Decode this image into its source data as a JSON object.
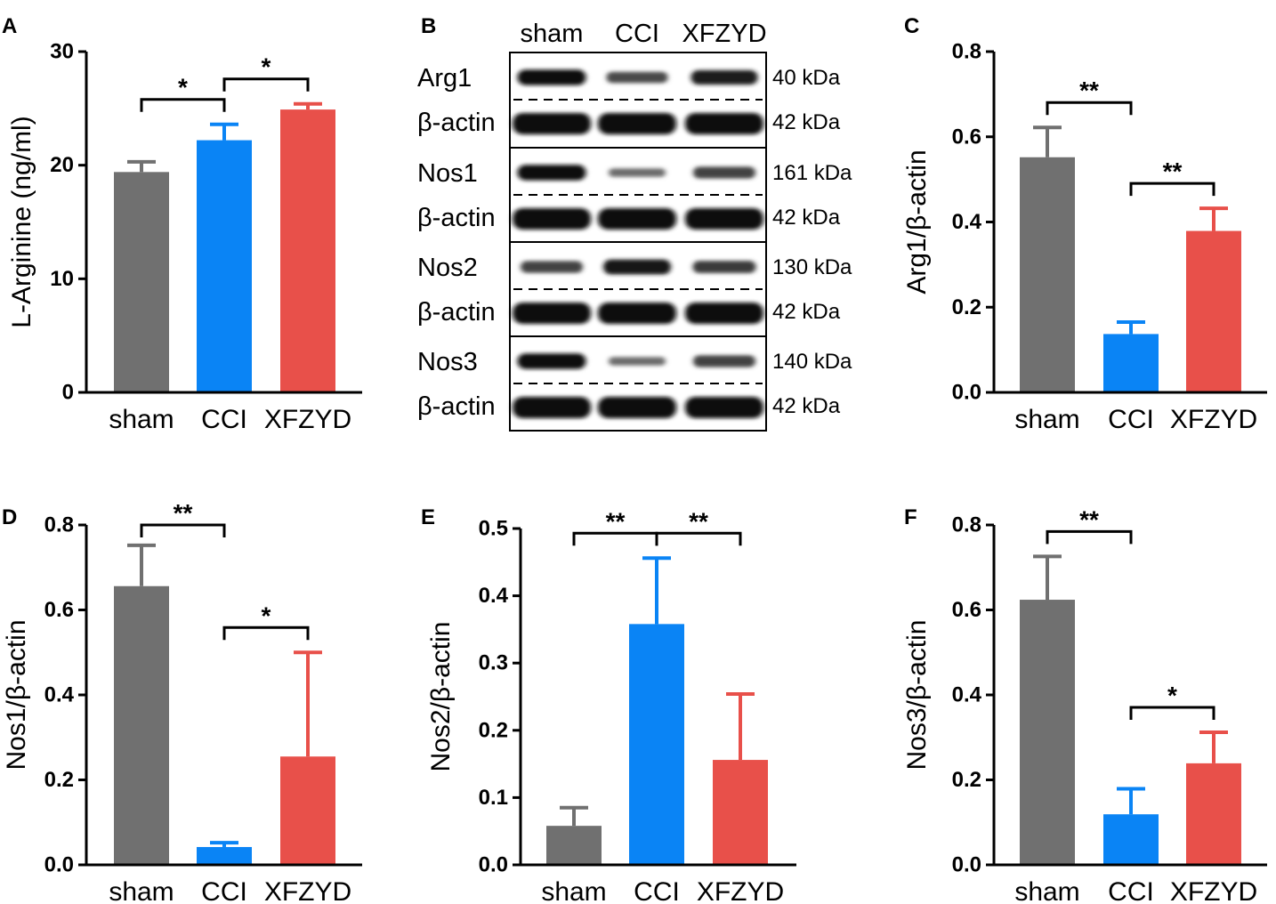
{
  "colors": {
    "sham": "#707070",
    "CCI": "#0a84f5",
    "XFZYD": "#e8504a",
    "axis": "#000000"
  },
  "chart_data": [
    {
      "panel": "A",
      "type": "bar",
      "ylabel": "L-Arginine (ng/ml)",
      "categories": [
        "sham",
        "CCI",
        "XFZYD"
      ],
      "values": [
        19.4,
        22.2,
        24.9
      ],
      "errors": [
        0.9,
        1.4,
        0.5
      ],
      "ylim": [
        0,
        30
      ],
      "yticks": [
        "0",
        "10",
        "20",
        "30"
      ],
      "comparisons": [
        {
          "from": 0,
          "to": 1,
          "label": "*"
        },
        {
          "from": 1,
          "to": 2,
          "label": "*"
        }
      ]
    },
    {
      "panel": "C",
      "type": "bar",
      "ylabel": "Arg1/β-actin",
      "categories": [
        "sham",
        "CCI",
        "XFZYD"
      ],
      "values": [
        0.552,
        0.137,
        0.379
      ],
      "errors": [
        0.07,
        0.028,
        0.053
      ],
      "ylim": [
        0,
        0.8
      ],
      "yticks": [
        "0.0",
        "0.2",
        "0.4",
        "0.6",
        "0.8"
      ],
      "comparisons": [
        {
          "from": 0,
          "to": 1,
          "label": "**"
        },
        {
          "from": 1,
          "to": 2,
          "label": "**"
        }
      ]
    },
    {
      "panel": "D",
      "type": "bar",
      "ylabel": "Nos1/β-actin",
      "categories": [
        "sham",
        "CCI",
        "XFZYD"
      ],
      "values": [
        0.656,
        0.042,
        0.255
      ],
      "errors": [
        0.096,
        0.01,
        0.245
      ],
      "ylim": [
        0,
        0.8
      ],
      "yticks": [
        "0.0",
        "0.2",
        "0.4",
        "0.6",
        "0.8"
      ],
      "comparisons": [
        {
          "from": 0,
          "to": 1,
          "label": "**"
        },
        {
          "from": 1,
          "to": 2,
          "label": "*"
        }
      ]
    },
    {
      "panel": "E",
      "type": "bar",
      "ylabel": "Nos2/β-actin",
      "categories": [
        "sham",
        "CCI",
        "XFZYD"
      ],
      "values": [
        0.058,
        0.358,
        0.156
      ],
      "errors": [
        0.027,
        0.098,
        0.098
      ],
      "ylim": [
        0,
        0.5
      ],
      "yticks": [
        "0.0",
        "0.1",
        "0.2",
        "0.3",
        "0.4",
        "0.5"
      ],
      "comparisons": [
        {
          "from": 0,
          "to": 1,
          "label": "**"
        },
        {
          "from": 1,
          "to": 2,
          "label": "**"
        }
      ]
    },
    {
      "panel": "F",
      "type": "bar",
      "ylabel": "Nos3/β-actin",
      "categories": [
        "sham",
        "CCI",
        "XFZYD"
      ],
      "values": [
        0.624,
        0.119,
        0.239
      ],
      "errors": [
        0.102,
        0.06,
        0.073
      ],
      "ylim": [
        0,
        0.8
      ],
      "yticks": [
        "0.0",
        "0.2",
        "0.4",
        "0.6",
        "0.8"
      ],
      "comparisons": [
        {
          "from": 0,
          "to": 1,
          "label": "**"
        },
        {
          "from": 1,
          "to": 2,
          "label": "*"
        }
      ]
    }
  ],
  "western_blot": {
    "panel": "B",
    "lanes": [
      "sham",
      "CCI",
      "XFZYD"
    ],
    "blocks": [
      {
        "target": "Arg1",
        "target_kda": "40 kDa",
        "control": "β-actin",
        "control_kda": "42 kDa",
        "intensity": [
          0.95,
          0.55,
          0.85
        ]
      },
      {
        "target": "Nos1",
        "target_kda": "161 kDa",
        "control": "β-actin",
        "control_kda": "42 kDa",
        "intensity": [
          0.95,
          0.3,
          0.6
        ]
      },
      {
        "target": "Nos2",
        "target_kda": "130 kDa",
        "control": "β-actin",
        "control_kda": "42 kDa",
        "intensity": [
          0.6,
          0.9,
          0.65
        ]
      },
      {
        "target": "Nos3",
        "target_kda": "140 kDa",
        "control": "β-actin",
        "control_kda": "42 kDa",
        "intensity": [
          0.95,
          0.3,
          0.6
        ]
      }
    ]
  }
}
